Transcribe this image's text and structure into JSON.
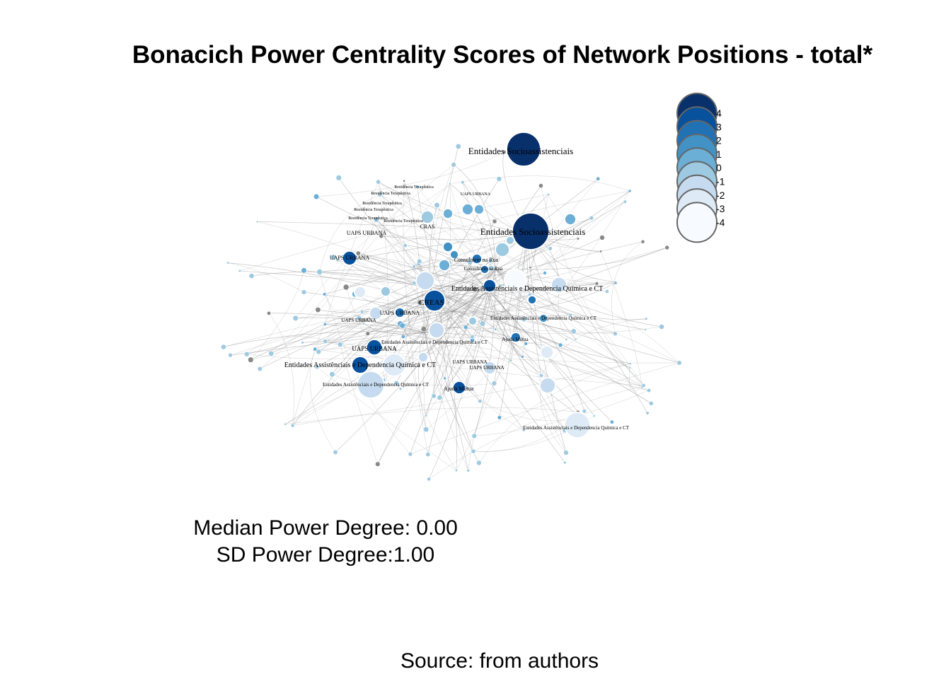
{
  "title": "Bonacich Power Centrality Scores of Network Positions - total*",
  "stats": {
    "median": "Median Power Degree: 0.00",
    "sd": "SD Power Degree:1.00"
  },
  "source": "Source: from authors",
  "legend": {
    "values": [
      "4",
      "3",
      "2",
      "1",
      "0",
      "-1",
      "-2",
      "-3",
      "-4"
    ],
    "colors": [
      "#08306b",
      "#08519c",
      "#2171b5",
      "#4292c6",
      "#6baed6",
      "#9ecae1",
      "#c6dbef",
      "#deebf7",
      "#f7fbff"
    ]
  },
  "node_labels": [
    "Entidades Socioassistenciais",
    "Entidades Socioassistenciais",
    "Entidades Assistênciais e Dependencia Química e CT",
    "CREAS",
    "UAPS URBANA",
    "UAPS URBANA",
    "UAPS URBANA",
    "UAPS URBANA",
    "UAPS URBANA",
    "Entidades Assistênciais e Dependencia Química e CT",
    "Entidades Assistênciais e Dependencia Química e CT",
    "Entidades Assistênciais e Dependencia Química e CT",
    "Entidades Assistênciais e Dependencia Química e CT",
    "Ajuda Mútua",
    "Ajuda Mútua",
    "Consultório na Rua",
    "Consultório na Rua",
    "Residência Terapêutica",
    "Residência Terapêutica",
    "Residência Terapêutica",
    "Residência Terapêutica",
    "Residência Terapêutica",
    "Residência Terapêutica",
    "UAPS URBANA",
    "UAPS URBANA",
    "UAPS URBANA",
    "CRAS",
    "Entidades Assistênciais e Dependencia Química e CT"
  ]
}
